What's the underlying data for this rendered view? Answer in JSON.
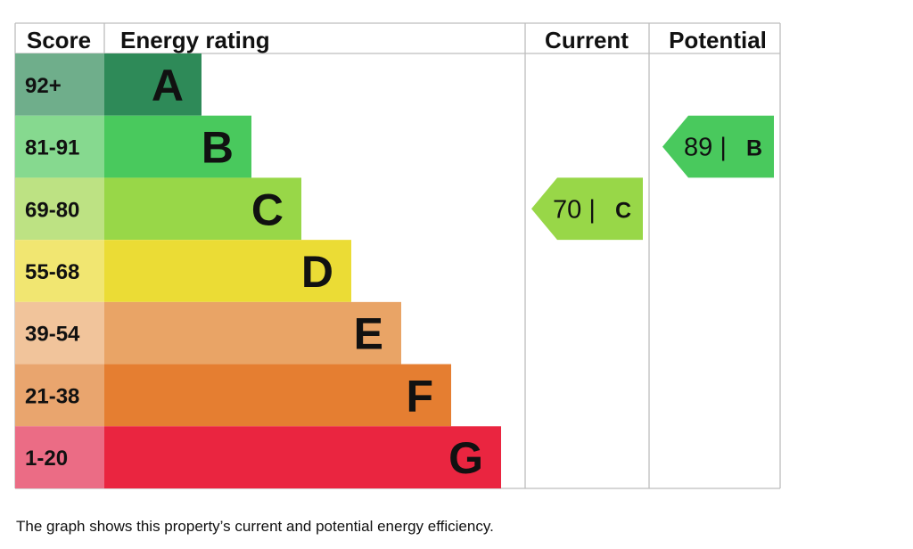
{
  "chart_data": {
    "type": "bar",
    "headers": {
      "score": "Score",
      "rating": "Energy rating",
      "current": "Current",
      "potential": "Potential"
    },
    "bands": [
      {
        "letter": "A",
        "range": "92+",
        "color": "#2e8a58",
        "score_color": "#6fae8b"
      },
      {
        "letter": "B",
        "range": "81-91",
        "color": "#49c95d",
        "score_color": "#86d98f"
      },
      {
        "letter": "C",
        "range": "69-80",
        "color": "#98d748",
        "score_color": "#bde283"
      },
      {
        "letter": "D",
        "range": "55-68",
        "color": "#ebdc35",
        "score_color": "#f1e671"
      },
      {
        "letter": "E",
        "range": "39-54",
        "color": "#e9a466",
        "score_color": "#f1c49b"
      },
      {
        "letter": "F",
        "range": "21-38",
        "color": "#e57e31",
        "score_color": "#e9a56e"
      },
      {
        "letter": "G",
        "range": "1-20",
        "color": "#ea2540",
        "score_color": "#eb6c85"
      }
    ],
    "current": {
      "value": "70 |",
      "letter": "C",
      "color": "#98d748"
    },
    "potential": {
      "value": "89 |",
      "letter": "B",
      "color": "#49c95d"
    }
  },
  "caption": "The graph shows this property’s current and potential energy efficiency."
}
